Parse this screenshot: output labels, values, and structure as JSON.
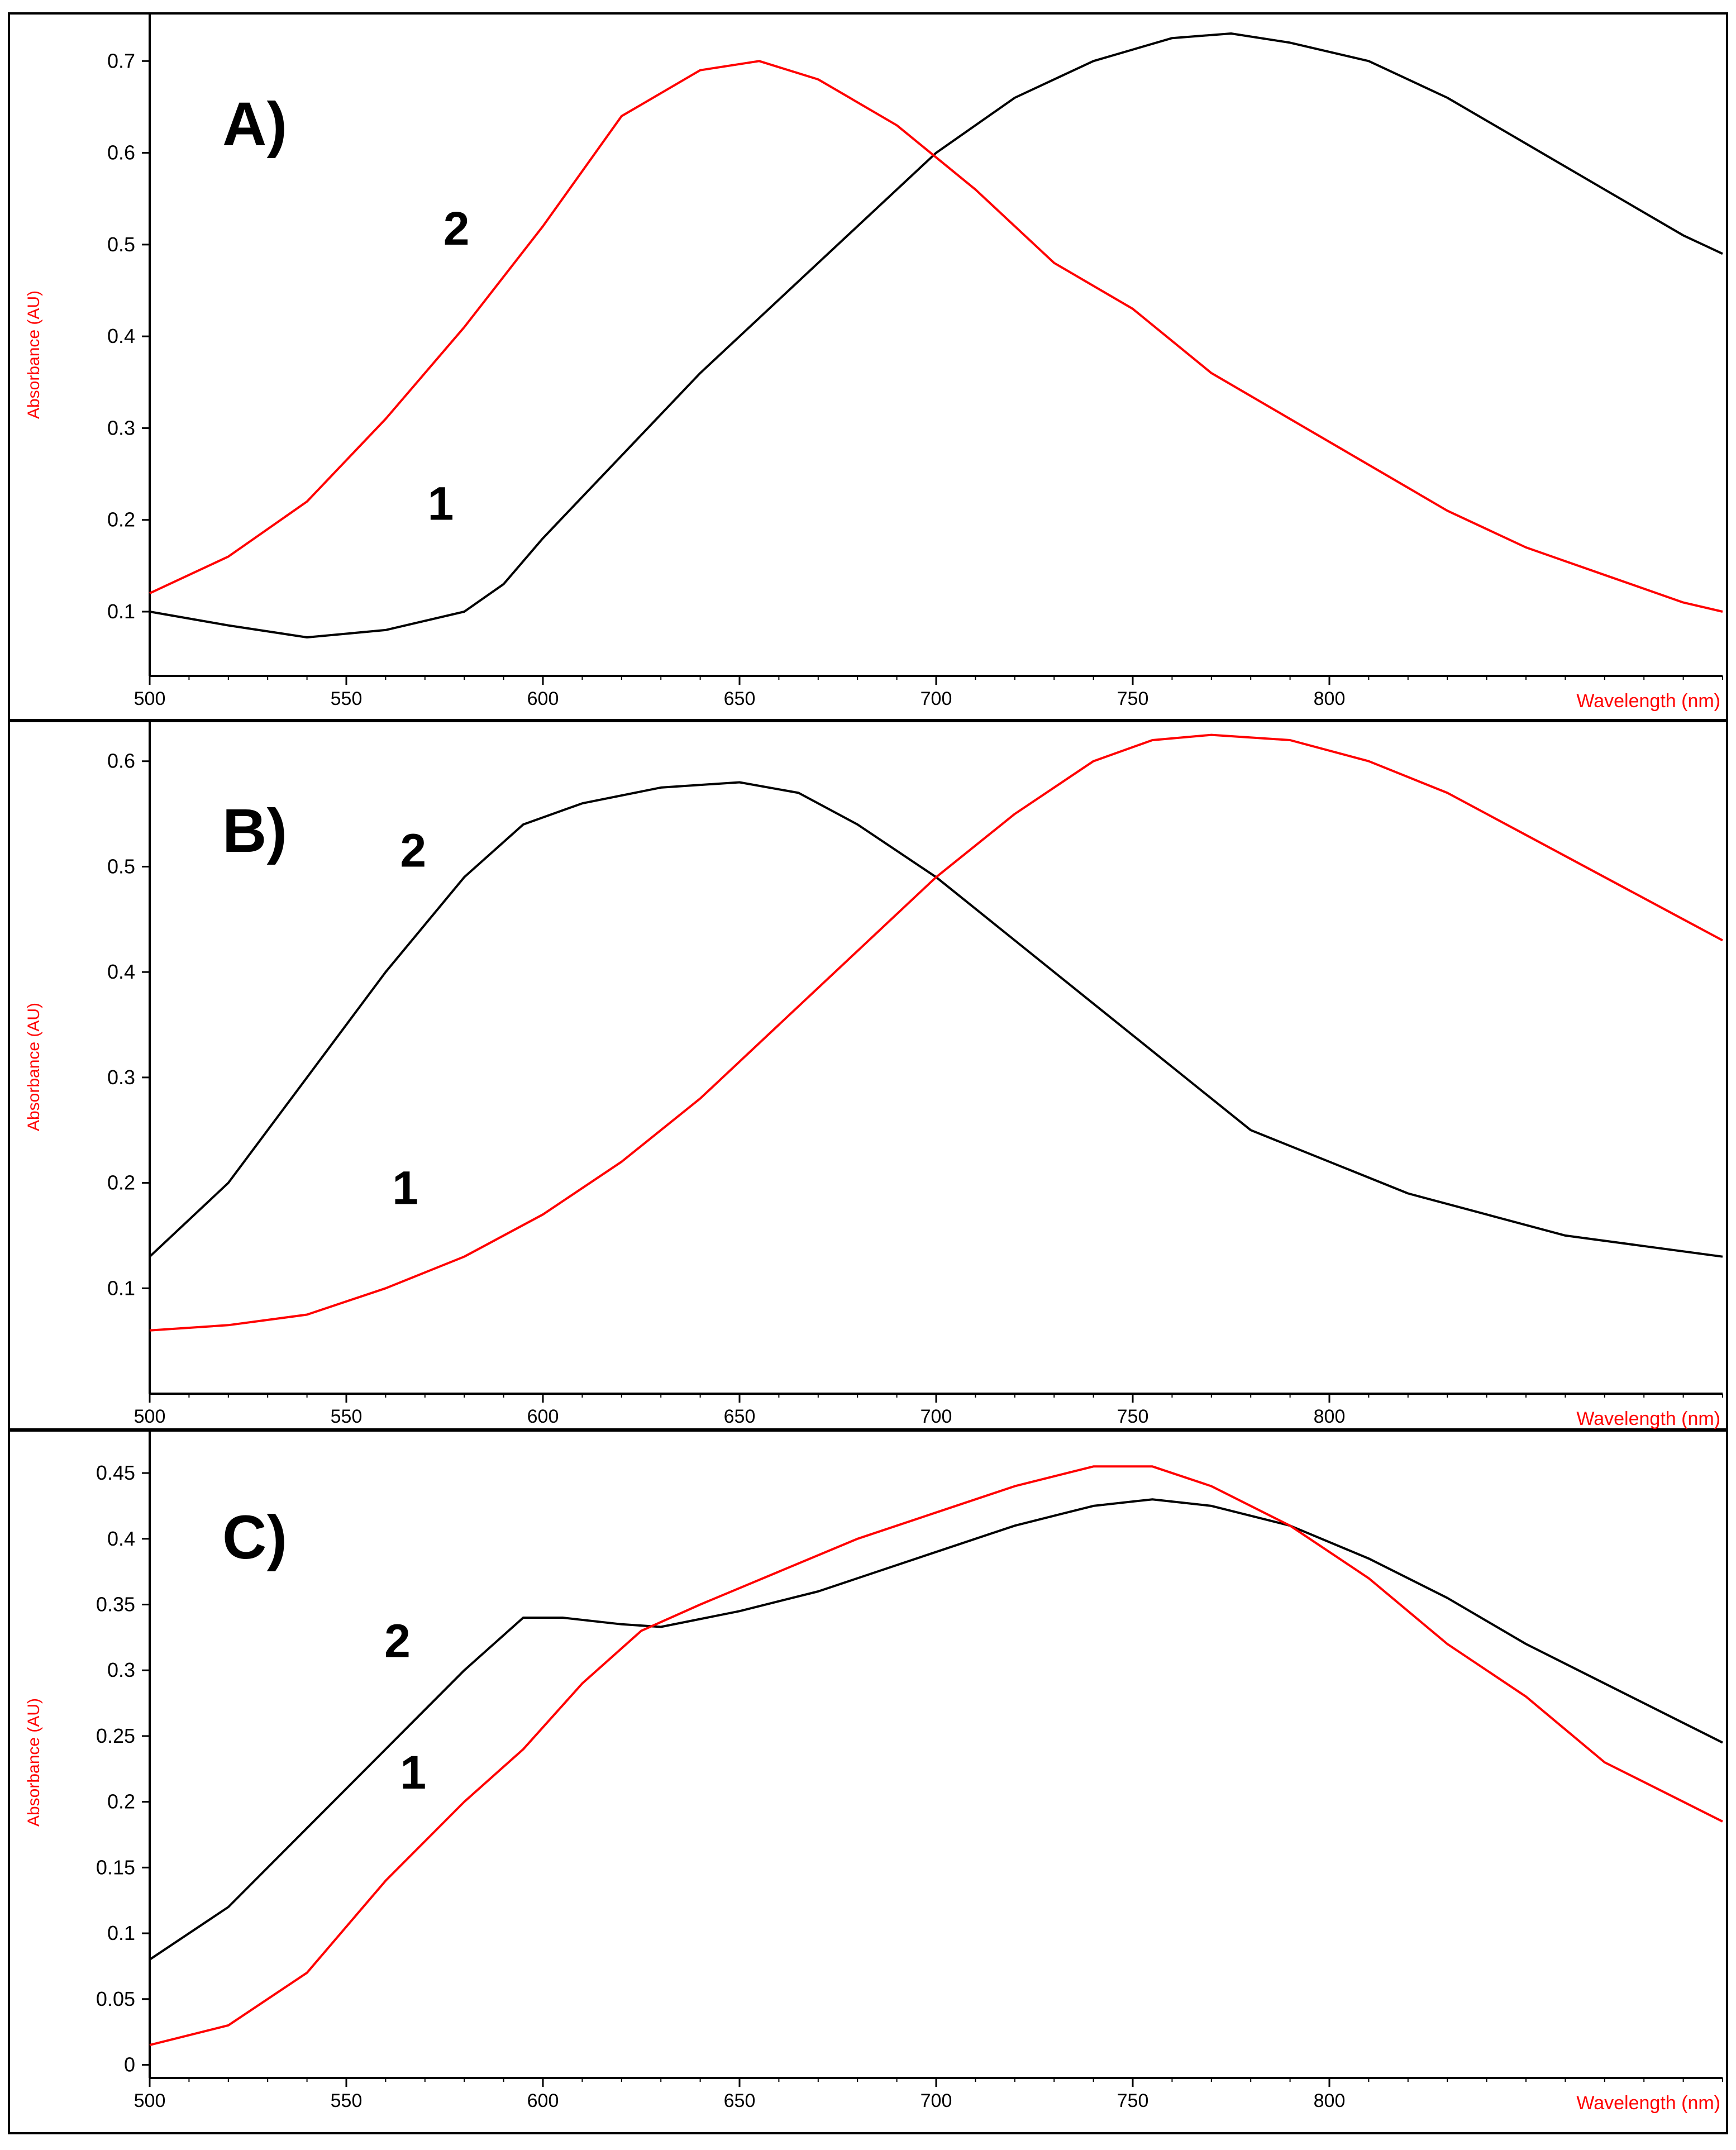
{
  "chart_data": [
    {
      "type": "line",
      "panel_label": "A)",
      "xlabel": "Wavelength (nm)",
      "ylabel": "Absorbance (AU)",
      "xlim": [
        500,
        900
      ],
      "ylim": [
        0.03,
        0.73
      ],
      "x_ticks": [
        500,
        550,
        600,
        650,
        700,
        750,
        800
      ],
      "y_ticks": [
        0.1,
        0.2,
        0.3,
        0.4,
        0.5,
        0.6,
        0.7
      ],
      "y_tick_labels": [
        "0.1",
        "0.2",
        "0.3",
        "0.4",
        "0.5",
        "0.6",
        "0.7"
      ],
      "colors": {
        "axis_label": "#ff0000",
        "curve_black": "#000000",
        "curve_red": "#ff0000"
      },
      "series": [
        {
          "name": "1",
          "color": "#000000",
          "x": [
            500,
            520,
            540,
            560,
            580,
            590,
            600,
            620,
            640,
            660,
            680,
            700,
            720,
            740,
            760,
            775,
            790,
            810,
            830,
            850,
            870,
            890,
            900
          ],
          "y": [
            0.1,
            0.085,
            0.072,
            0.08,
            0.1,
            0.13,
            0.18,
            0.27,
            0.36,
            0.44,
            0.52,
            0.6,
            0.66,
            0.7,
            0.725,
            0.73,
            0.72,
            0.7,
            0.66,
            0.61,
            0.56,
            0.51,
            0.49
          ]
        },
        {
          "name": "2",
          "color": "#ff0000",
          "x": [
            500,
            520,
            540,
            560,
            580,
            600,
            620,
            640,
            655,
            670,
            690,
            710,
            730,
            750,
            770,
            790,
            810,
            830,
            850,
            870,
            890,
            900
          ],
          "y": [
            0.12,
            0.16,
            0.22,
            0.31,
            0.41,
            0.52,
            0.64,
            0.69,
            0.7,
            0.68,
            0.63,
            0.56,
            0.48,
            0.43,
            0.36,
            0.31,
            0.26,
            0.21,
            0.17,
            0.14,
            0.11,
            0.1
          ]
        }
      ],
      "annotations": [
        {
          "text": "2",
          "x": 578,
          "y": 0.5
        },
        {
          "text": "1",
          "x": 574,
          "y": 0.2
        }
      ]
    },
    {
      "type": "line",
      "panel_label": "B)",
      "xlabel": "Wavelength (nm)",
      "ylabel": "Absorbance (AU)",
      "xlim": [
        500,
        900
      ],
      "ylim": [
        0.0,
        0.62
      ],
      "x_ticks": [
        500,
        550,
        600,
        650,
        700,
        750,
        800
      ],
      "y_ticks": [
        0.1,
        0.2,
        0.3,
        0.4,
        0.5,
        0.6
      ],
      "y_tick_labels": [
        "0.1",
        "0.2",
        "0.3",
        "0.4",
        "0.5",
        "0.6"
      ],
      "series": [
        {
          "name": "2",
          "color": "#000000",
          "x": [
            500,
            520,
            540,
            560,
            580,
            595,
            610,
            630,
            650,
            665,
            680,
            700,
            720,
            740,
            760,
            780,
            800,
            820,
            840,
            860,
            880,
            900
          ],
          "y": [
            0.13,
            0.2,
            0.3,
            0.4,
            0.49,
            0.54,
            0.56,
            0.575,
            0.58,
            0.57,
            0.54,
            0.49,
            0.43,
            0.37,
            0.31,
            0.25,
            0.22,
            0.19,
            0.17,
            0.15,
            0.14,
            0.13
          ]
        },
        {
          "name": "1",
          "color": "#ff0000",
          "x": [
            500,
            520,
            540,
            560,
            580,
            600,
            620,
            640,
            660,
            680,
            700,
            720,
            740,
            755,
            770,
            790,
            810,
            830,
            850,
            870,
            890,
            900
          ],
          "y": [
            0.06,
            0.065,
            0.075,
            0.1,
            0.13,
            0.17,
            0.22,
            0.28,
            0.35,
            0.42,
            0.49,
            0.55,
            0.6,
            0.62,
            0.625,
            0.62,
            0.6,
            0.57,
            0.53,
            0.49,
            0.45,
            0.43
          ]
        }
      ],
      "annotations": [
        {
          "text": "2",
          "x": 567,
          "y": 0.5
        },
        {
          "text": "1",
          "x": 565,
          "y": 0.18
        }
      ]
    },
    {
      "type": "line",
      "panel_label": "C)",
      "xlabel": "Wavelength (nm)",
      "ylabel": "Absorbance (AU)",
      "xlim": [
        500,
        900
      ],
      "ylim": [
        -0.01,
        0.47
      ],
      "x_ticks": [
        500,
        550,
        600,
        650,
        700,
        750,
        800
      ],
      "y_ticks": [
        0,
        0.05,
        0.1,
        0.15,
        0.2,
        0.25,
        0.3,
        0.35,
        0.4,
        0.45
      ],
      "y_tick_labels": [
        "0",
        "0.05",
        "0.1",
        "0.15",
        "0.2",
        "0.25",
        "0.3",
        "0.35",
        "0.4",
        "0.45"
      ],
      "series": [
        {
          "name": "2",
          "color": "#000000",
          "x": [
            500,
            520,
            540,
            560,
            580,
            595,
            605,
            620,
            630,
            650,
            670,
            700,
            720,
            740,
            755,
            770,
            790,
            810,
            830,
            850,
            870,
            890,
            900
          ],
          "y": [
            0.08,
            0.12,
            0.18,
            0.24,
            0.3,
            0.34,
            0.34,
            0.335,
            0.333,
            0.345,
            0.36,
            0.39,
            0.41,
            0.425,
            0.43,
            0.425,
            0.41,
            0.385,
            0.355,
            0.32,
            0.29,
            0.26,
            0.245
          ]
        },
        {
          "name": "1",
          "color": "#ff0000",
          "x": [
            500,
            520,
            540,
            560,
            580,
            595,
            610,
            625,
            640,
            660,
            680,
            700,
            720,
            740,
            755,
            770,
            790,
            810,
            830,
            850,
            870,
            890,
            900
          ],
          "y": [
            0.015,
            0.03,
            0.07,
            0.14,
            0.2,
            0.24,
            0.29,
            0.33,
            0.35,
            0.375,
            0.4,
            0.42,
            0.44,
            0.455,
            0.455,
            0.44,
            0.41,
            0.37,
            0.32,
            0.28,
            0.23,
            0.2,
            0.185
          ]
        }
      ],
      "annotations": [
        {
          "text": "2",
          "x": 563,
          "y": 0.31
        },
        {
          "text": "1",
          "x": 567,
          "y": 0.21
        }
      ]
    }
  ]
}
